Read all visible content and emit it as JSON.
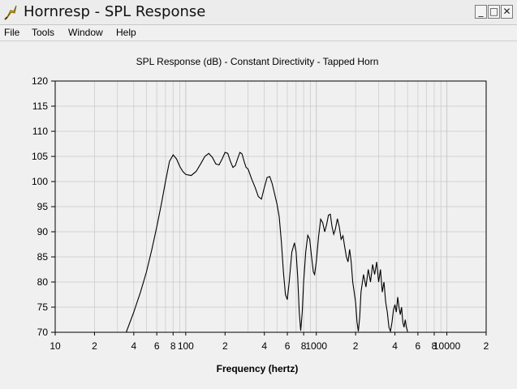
{
  "window": {
    "title": "Hornresp - SPL Response",
    "minimize_glyph": "_",
    "maximize_glyph": "□",
    "close_glyph": "✕"
  },
  "menu": [
    {
      "label": "File"
    },
    {
      "label": "Tools"
    },
    {
      "label": "Window"
    },
    {
      "label": "Help"
    }
  ],
  "colors": {
    "plot_background": "#ffffff",
    "grid": "#c8c8c8",
    "curve": "#000000",
    "window_background": "#f0f0f0"
  },
  "chart_data": {
    "type": "line",
    "title": "SPL Response (dB) - Constant Directivity - Tapped Horn",
    "xlabel": "Frequency (hertz)",
    "ylabel": "",
    "x_scale": "log",
    "xlim": [
      10,
      20000
    ],
    "ylim": [
      70,
      120
    ],
    "y_ticks": [
      120,
      115,
      110,
      105,
      100,
      95,
      90,
      85,
      80,
      75,
      70
    ],
    "x_ticks": [
      {
        "value": 10,
        "label": "10"
      },
      {
        "value": 20,
        "label": "2"
      },
      {
        "value": 40,
        "label": "4"
      },
      {
        "value": 60,
        "label": "6"
      },
      {
        "value": 80,
        "label": "8"
      },
      {
        "value": 100,
        "label": "100"
      },
      {
        "value": 200,
        "label": "2"
      },
      {
        "value": 400,
        "label": "4"
      },
      {
        "value": 600,
        "label": "6"
      },
      {
        "value": 800,
        "label": "8"
      },
      {
        "value": 1000,
        "label": "1000"
      },
      {
        "value": 2000,
        "label": "2"
      },
      {
        "value": 4000,
        "label": "4"
      },
      {
        "value": 6000,
        "label": "6"
      },
      {
        "value": 8000,
        "label": "8"
      },
      {
        "value": 10000,
        "label": "10000"
      },
      {
        "value": 20000,
        "label": "2"
      }
    ],
    "grid": true,
    "series": [
      {
        "points": [
          [
            35,
            70
          ],
          [
            40,
            74
          ],
          [
            45,
            78
          ],
          [
            50,
            82
          ],
          [
            55,
            86.5
          ],
          [
            60,
            91
          ],
          [
            65,
            95.5
          ],
          [
            70,
            100
          ],
          [
            75,
            104
          ],
          [
            80,
            105.3
          ],
          [
            85,
            104.5
          ],
          [
            90,
            103
          ],
          [
            95,
            102
          ],
          [
            100,
            101.4
          ],
          [
            110,
            101.2
          ],
          [
            120,
            102
          ],
          [
            130,
            103.5
          ],
          [
            140,
            105
          ],
          [
            150,
            105.6
          ],
          [
            160,
            104.8
          ],
          [
            170,
            103.5
          ],
          [
            180,
            103.3
          ],
          [
            190,
            104.5
          ],
          [
            200,
            105.8
          ],
          [
            210,
            105.6
          ],
          [
            220,
            104
          ],
          [
            230,
            102.8
          ],
          [
            240,
            103.2
          ],
          [
            250,
            104.6
          ],
          [
            260,
            105.8
          ],
          [
            270,
            105.5
          ],
          [
            280,
            104
          ],
          [
            290,
            102.8
          ],
          [
            300,
            102.5
          ],
          [
            320,
            100.5
          ],
          [
            340,
            98.8
          ],
          [
            360,
            97
          ],
          [
            380,
            96.5
          ],
          [
            400,
            98.8
          ],
          [
            420,
            100.8
          ],
          [
            440,
            101
          ],
          [
            460,
            99.5
          ],
          [
            480,
            97.5
          ],
          [
            500,
            95.5
          ],
          [
            520,
            93
          ],
          [
            540,
            88
          ],
          [
            560,
            82
          ],
          [
            580,
            77.5
          ],
          [
            600,
            76.5
          ],
          [
            620,
            80
          ],
          [
            650,
            86
          ],
          [
            680,
            87.8
          ],
          [
            700,
            86
          ],
          [
            720,
            81
          ],
          [
            740,
            74
          ],
          [
            760,
            70.3
          ],
          [
            780,
            74
          ],
          [
            800,
            80
          ],
          [
            830,
            86
          ],
          [
            860,
            89.3
          ],
          [
            890,
            88.5
          ],
          [
            920,
            85
          ],
          [
            950,
            82
          ],
          [
            970,
            81.5
          ],
          [
            1000,
            84
          ],
          [
            1040,
            89
          ],
          [
            1080,
            92.5
          ],
          [
            1120,
            91.8
          ],
          [
            1160,
            90
          ],
          [
            1200,
            91.5
          ],
          [
            1240,
            93.3
          ],
          [
            1280,
            93.5
          ],
          [
            1320,
            91
          ],
          [
            1360,
            89.5
          ],
          [
            1400,
            90.5
          ],
          [
            1450,
            92.6
          ],
          [
            1500,
            91
          ],
          [
            1550,
            88.5
          ],
          [
            1600,
            89.2
          ],
          [
            1650,
            87
          ],
          [
            1700,
            85
          ],
          [
            1750,
            84
          ],
          [
            1800,
            86.5
          ],
          [
            1850,
            84
          ],
          [
            1900,
            80
          ],
          [
            1950,
            78
          ],
          [
            2000,
            76
          ],
          [
            2050,
            72
          ],
          [
            2100,
            70.2
          ],
          [
            2150,
            73
          ],
          [
            2200,
            78
          ],
          [
            2300,
            81.5
          ],
          [
            2400,
            79
          ],
          [
            2500,
            82.5
          ],
          [
            2600,
            80
          ],
          [
            2700,
            83.5
          ],
          [
            2800,
            81.5
          ],
          [
            2900,
            84
          ],
          [
            3000,
            80
          ],
          [
            3100,
            82.5
          ],
          [
            3200,
            78
          ],
          [
            3300,
            80
          ],
          [
            3400,
            76
          ],
          [
            3500,
            74
          ],
          [
            3600,
            71
          ],
          [
            3700,
            70.2
          ],
          [
            3800,
            72
          ],
          [
            3900,
            74.5
          ],
          [
            4000,
            75.5
          ],
          [
            4100,
            74
          ],
          [
            4200,
            77
          ],
          [
            4300,
            75
          ],
          [
            4400,
            73.5
          ],
          [
            4500,
            75
          ],
          [
            4600,
            72
          ],
          [
            4700,
            71
          ],
          [
            4800,
            72.5
          ],
          [
            4900,
            71
          ],
          [
            5000,
            70.1
          ]
        ]
      }
    ]
  }
}
